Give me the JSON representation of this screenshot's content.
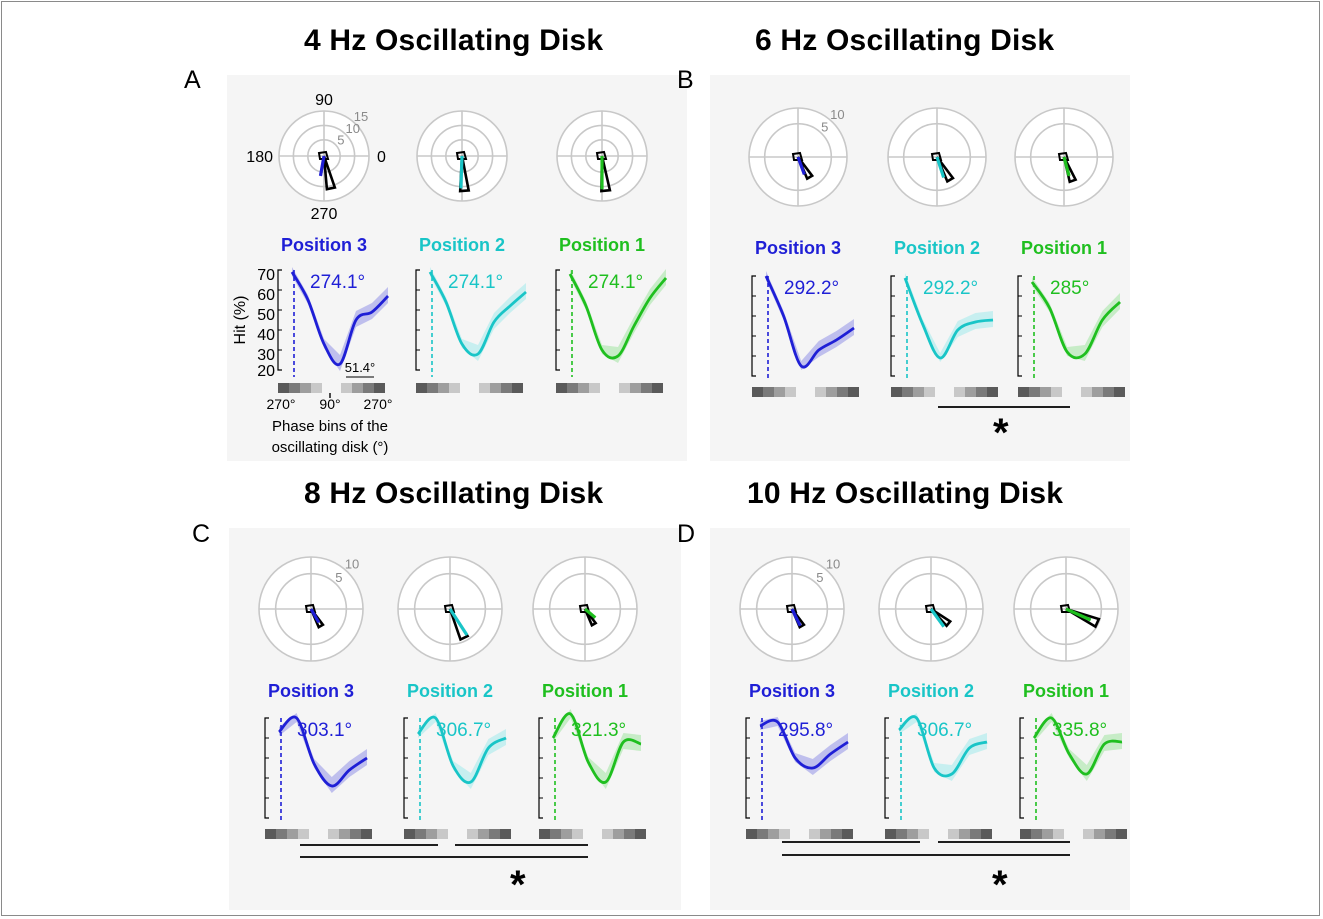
{
  "panels": [
    {
      "letter": "A",
      "title": "4 Hz Oscillating Disk",
      "polar_ring_labels": [
        "5",
        "10",
        "15"
      ],
      "polar_axis_labels": {
        "top": "90",
        "left": "180",
        "right": "0",
        "bottom": "270"
      },
      "significance_label": "",
      "positions": [
        {
          "label": "Position 3",
          "color": "#1f1fd6",
          "peak_label": "274.1°",
          "peak_phase_deg": 274.1,
          "mean_vector_deg": 260,
          "mean_vector_length": 0.45,
          "hist_peak_deg": 282,
          "hist_peak_length": 0.74,
          "shade": "#a8a8ea"
        },
        {
          "label": "Position 2",
          "color": "#19c5c7",
          "peak_label": "274.1°",
          "peak_phase_deg": 274.1,
          "mean_vector_deg": 268,
          "mean_vector_length": 0.72,
          "hist_peak_deg": 274,
          "hist_peak_length": 0.78,
          "shade": "#b3ecee"
        },
        {
          "label": "Position 1",
          "color": "#1fbf1f",
          "peak_label": "274.1°",
          "peak_phase_deg": 274.1,
          "mean_vector_deg": 270,
          "mean_vector_length": 0.74,
          "hist_peak_deg": 276,
          "hist_peak_length": 0.78,
          "shade": "#b3e8b3"
        }
      ],
      "y_axis_label": "Hit (%)",
      "y_ticks": [
        "70",
        "60",
        "50",
        "40",
        "30",
        "20"
      ],
      "x_ticks": [
        "270°",
        "90°",
        "270°"
      ],
      "bin_width_label": "51.4°",
      "x_axis_label_lines": [
        "Phase bins of the",
        "oscillating disk (°)"
      ]
    },
    {
      "letter": "B",
      "title": "6 Hz Oscillating Disk",
      "polar_ring_labels": [
        "5",
        "10"
      ],
      "polar_axis_labels": {
        "top": "",
        "left": "",
        "right": "",
        "bottom": ""
      },
      "significance_label": "*",
      "positions": [
        {
          "label": "Position 3",
          "color": "#1f1fd6",
          "peak_label": "292.2°",
          "peak_phase_deg": 292.2,
          "mean_vector_deg": 290,
          "mean_vector_length": 0.38,
          "hist_peak_deg": 300,
          "hist_peak_length": 0.48,
          "shade": "#a8a8ea"
        },
        {
          "label": "Position 2",
          "color": "#19c5c7",
          "peak_label": "292.2°",
          "peak_phase_deg": 292.2,
          "mean_vector_deg": 288,
          "mean_vector_length": 0.44,
          "hist_peak_deg": 300,
          "hist_peak_length": 0.54,
          "shade": "#b3ecee"
        },
        {
          "label": "Position 1",
          "color": "#1fbf1f",
          "peak_label": "285°",
          "peak_phase_deg": 285,
          "mean_vector_deg": 285,
          "mean_vector_length": 0.4,
          "hist_peak_deg": 290,
          "hist_peak_length": 0.52,
          "shade": "#b3e8b3"
        }
      ]
    },
    {
      "letter": "C",
      "title": "8 Hz Oscillating Disk",
      "polar_ring_labels": [
        "5",
        "10"
      ],
      "polar_axis_labels": {
        "top": "",
        "left": "",
        "right": "",
        "bottom": ""
      },
      "significance_label": "*",
      "positions": [
        {
          "label": "Position 3",
          "color": "#1f1fd6",
          "peak_label": "303.1°",
          "peak_phase_deg": 303.1,
          "mean_vector_deg": 300,
          "mean_vector_length": 0.3,
          "hist_peak_deg": 300,
          "hist_peak_length": 0.38,
          "shade": "#a8a8ea"
        },
        {
          "label": "Position 2",
          "color": "#19c5c7",
          "peak_label": "306.7°",
          "peak_phase_deg": 306.7,
          "mean_vector_deg": 303,
          "mean_vector_length": 0.6,
          "hist_peak_deg": 296,
          "hist_peak_length": 0.62,
          "shade": "#b3ecee"
        },
        {
          "label": "Position 1",
          "color": "#1fbf1f",
          "peak_label": "321.3°",
          "peak_phase_deg": 321.3,
          "mean_vector_deg": 320,
          "mean_vector_length": 0.26,
          "hist_peak_deg": 300,
          "hist_peak_length": 0.34,
          "shade": "#b3e8b3"
        }
      ]
    },
    {
      "letter": "D",
      "title": "10 Hz Oscillating Disk",
      "polar_ring_labels": [
        "5",
        "10"
      ],
      "polar_axis_labels": {
        "top": "",
        "left": "",
        "right": "",
        "bottom": ""
      },
      "significance_label": "*",
      "positions": [
        {
          "label": "Position 3",
          "color": "#1f1fd6",
          "peak_label": "295.8°",
          "peak_phase_deg": 295.8,
          "mean_vector_deg": 296,
          "mean_vector_length": 0.36,
          "hist_peak_deg": 300,
          "hist_peak_length": 0.38,
          "shade": "#a8a8ea"
        },
        {
          "label": "Position 2",
          "color": "#19c5c7",
          "peak_label": "306.7°",
          "peak_phase_deg": 306.7,
          "mean_vector_deg": 306,
          "mean_vector_length": 0.42,
          "hist_peak_deg": 320,
          "hist_peak_length": 0.44,
          "shade": "#b3ecee"
        },
        {
          "label": "Position 1",
          "color": "#1fbf1f",
          "peak_label": "335.8°",
          "peak_phase_deg": 335.8,
          "mean_vector_deg": 336,
          "mean_vector_length": 0.52,
          "hist_peak_deg": 336,
          "hist_peak_length": 0.66,
          "shade": "#b3e8b3"
        }
      ]
    }
  ],
  "chart_data": {
    "type": "line",
    "title": "",
    "xlabel": "Phase bins of the oscillating disk (°)",
    "ylabel": "Hit (%)",
    "ylim": [
      20,
      70
    ],
    "x_ticks": [
      "270°",
      "90°",
      "270°"
    ],
    "panels": [
      {
        "title": "4 Hz Oscillating Disk",
        "series": [
          {
            "name": "Position 3",
            "peak_phase": "274.1°",
            "values": [
              69,
              55,
              33,
              23,
              45,
              49,
              57
            ]
          },
          {
            "name": "Position 2",
            "peak_phase": "274.1°",
            "values": [
              69,
              54,
              33,
              28,
              44,
              52,
              59
            ]
          },
          {
            "name": "Position 1",
            "peak_phase": "274.1°",
            "values": [
              68,
              52,
              30,
              27,
              42,
              56,
              66
            ]
          }
        ]
      },
      {
        "title": "6 Hz Oscillating Disk",
        "series": [
          {
            "name": "Position 3",
            "peak_phase": "292.2°",
            "values": [
              70,
              50,
              25,
              33,
              38,
              44
            ]
          },
          {
            "name": "Position 2",
            "peak_phase": "292.2°",
            "values": [
              69,
              46,
              29,
              43,
              47,
              48
            ]
          },
          {
            "name": "Position 1",
            "peak_phase": "285°",
            "values": [
              67,
              54,
              32,
              31,
              48,
              57
            ]
          }
        ]
      },
      {
        "title": "8 Hz Oscillating Disk",
        "series": [
          {
            "name": "Position 3",
            "peak_phase": "303.1°",
            "values": [
              63,
              70,
              47,
              36,
              44,
              50
            ]
          },
          {
            "name": "Position 2",
            "peak_phase": "306.7°",
            "values": [
              62,
              70,
              46,
              38,
              55,
              60
            ]
          },
          {
            "name": "Position 1",
            "peak_phase": "321.3°",
            "values": [
              60,
              72,
              48,
              38,
              58,
              57
            ]
          }
        ]
      },
      {
        "title": "10 Hz Oscillating Disk",
        "series": [
          {
            "name": "Position 3",
            "peak_phase": "295.8°",
            "values": [
              66,
              68,
              50,
              45,
              52,
              58
            ]
          },
          {
            "name": "Position 2",
            "peak_phase": "306.7°",
            "values": [
              64,
              70,
              45,
              42,
              55,
              58
            ]
          },
          {
            "name": "Position 1",
            "peak_phase": "335.8°",
            "values": [
              60,
              70,
              52,
              42,
              57,
              58
            ]
          }
        ]
      }
    ]
  }
}
